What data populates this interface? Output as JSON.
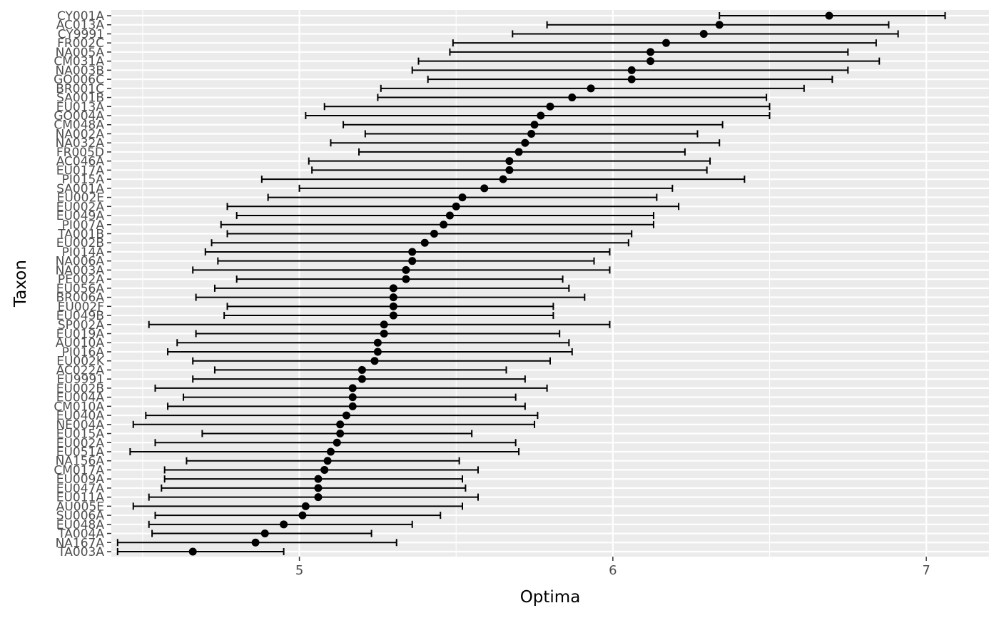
{
  "chart_data": {
    "type": "scatter",
    "subtype": "point-with-horizontal-errorbars",
    "title": "",
    "xlabel": "Optima",
    "ylabel": "Taxon",
    "xlim": [
      4.4,
      7.2
    ],
    "x_ticks": [
      5,
      6,
      7
    ],
    "grid": true,
    "panel_background": "#ebebeb",
    "grid_color": "#ffffff",
    "point_color": "#000000",
    "categories": [
      "CY001A",
      "AC013A",
      "CY9991",
      "FR002C",
      "NA005A",
      "CM031A",
      "NA003B",
      "GO006C",
      "BR001C",
      "SA001B",
      "EU013A",
      "GO004A",
      "CM048A",
      "NA002A",
      "NA032A",
      "FR005D",
      "AC046A",
      "EU017A",
      "PI015A",
      "SA001A",
      "EU002E",
      "EU002A",
      "EU049A",
      "PI007A",
      "TA001B",
      "EU002B",
      "PI014A",
      "NA006A",
      "NA003A",
      "PE002A",
      "EU056A",
      "BR006A",
      "EU002F",
      "EU049B",
      "SP002A",
      "EU019A",
      "AU010A",
      "PI016A",
      "EU002K",
      "AC022A",
      "EU9991",
      "EU002B",
      "EU004A",
      "CM010A",
      "EU040A",
      "NE004A",
      "EU015A",
      "EU002A",
      "EU051A",
      "NA156A",
      "CM017A",
      "EU009A",
      "EU047A",
      "EU011A",
      "AU005E",
      "SU006A",
      "EU048A",
      "TA004A",
      "NA167A",
      "TA003A"
    ],
    "values": [
      6.69,
      6.34,
      6.29,
      6.17,
      6.12,
      6.12,
      6.06,
      6.06,
      5.93,
      5.87,
      5.8,
      5.77,
      5.75,
      5.74,
      5.72,
      5.7,
      5.67,
      5.67,
      5.65,
      5.59,
      5.52,
      5.5,
      5.48,
      5.46,
      5.43,
      5.4,
      5.36,
      5.36,
      5.34,
      5.34,
      5.3,
      5.3,
      5.3,
      5.3,
      5.27,
      5.27,
      5.25,
      5.25,
      5.24,
      5.2,
      5.2,
      5.17,
      5.17,
      5.17,
      5.15,
      5.13,
      5.13,
      5.12,
      5.1,
      5.09,
      5.08,
      5.06,
      5.06,
      5.06,
      5.02,
      5.01,
      4.95,
      4.89,
      4.86,
      4.66
    ],
    "lower": [
      6.34,
      5.79,
      5.68,
      5.49,
      5.48,
      5.38,
      5.36,
      5.41,
      5.26,
      5.25,
      5.08,
      5.02,
      5.14,
      5.21,
      5.1,
      5.19,
      5.03,
      5.04,
      4.88,
      5.0,
      4.9,
      4.77,
      4.8,
      4.75,
      4.77,
      4.72,
      4.7,
      4.74,
      4.66,
      4.8,
      4.73,
      4.67,
      4.77,
      4.76,
      4.52,
      4.67,
      4.61,
      4.58,
      4.66,
      4.73,
      4.66,
      4.54,
      4.63,
      4.58,
      4.51,
      4.47,
      4.69,
      4.54,
      4.46,
      4.64,
      4.57,
      4.57,
      4.56,
      4.52,
      4.47,
      4.54,
      4.52,
      4.53,
      4.42,
      4.42
    ],
    "upper": [
      7.06,
      6.88,
      6.91,
      6.84,
      6.75,
      6.85,
      6.75,
      6.7,
      6.61,
      6.49,
      6.5,
      6.5,
      6.35,
      6.27,
      6.34,
      6.23,
      6.31,
      6.3,
      6.42,
      6.19,
      6.14,
      6.21,
      6.13,
      6.13,
      6.06,
      6.05,
      5.99,
      5.94,
      5.99,
      5.84,
      5.86,
      5.91,
      5.81,
      5.81,
      5.99,
      5.83,
      5.86,
      5.87,
      5.8,
      5.66,
      5.72,
      5.79,
      5.69,
      5.72,
      5.76,
      5.75,
      5.55,
      5.69,
      5.7,
      5.51,
      5.57,
      5.52,
      5.53,
      5.57,
      5.52,
      5.45,
      5.36,
      5.23,
      5.31,
      4.95
    ]
  }
}
